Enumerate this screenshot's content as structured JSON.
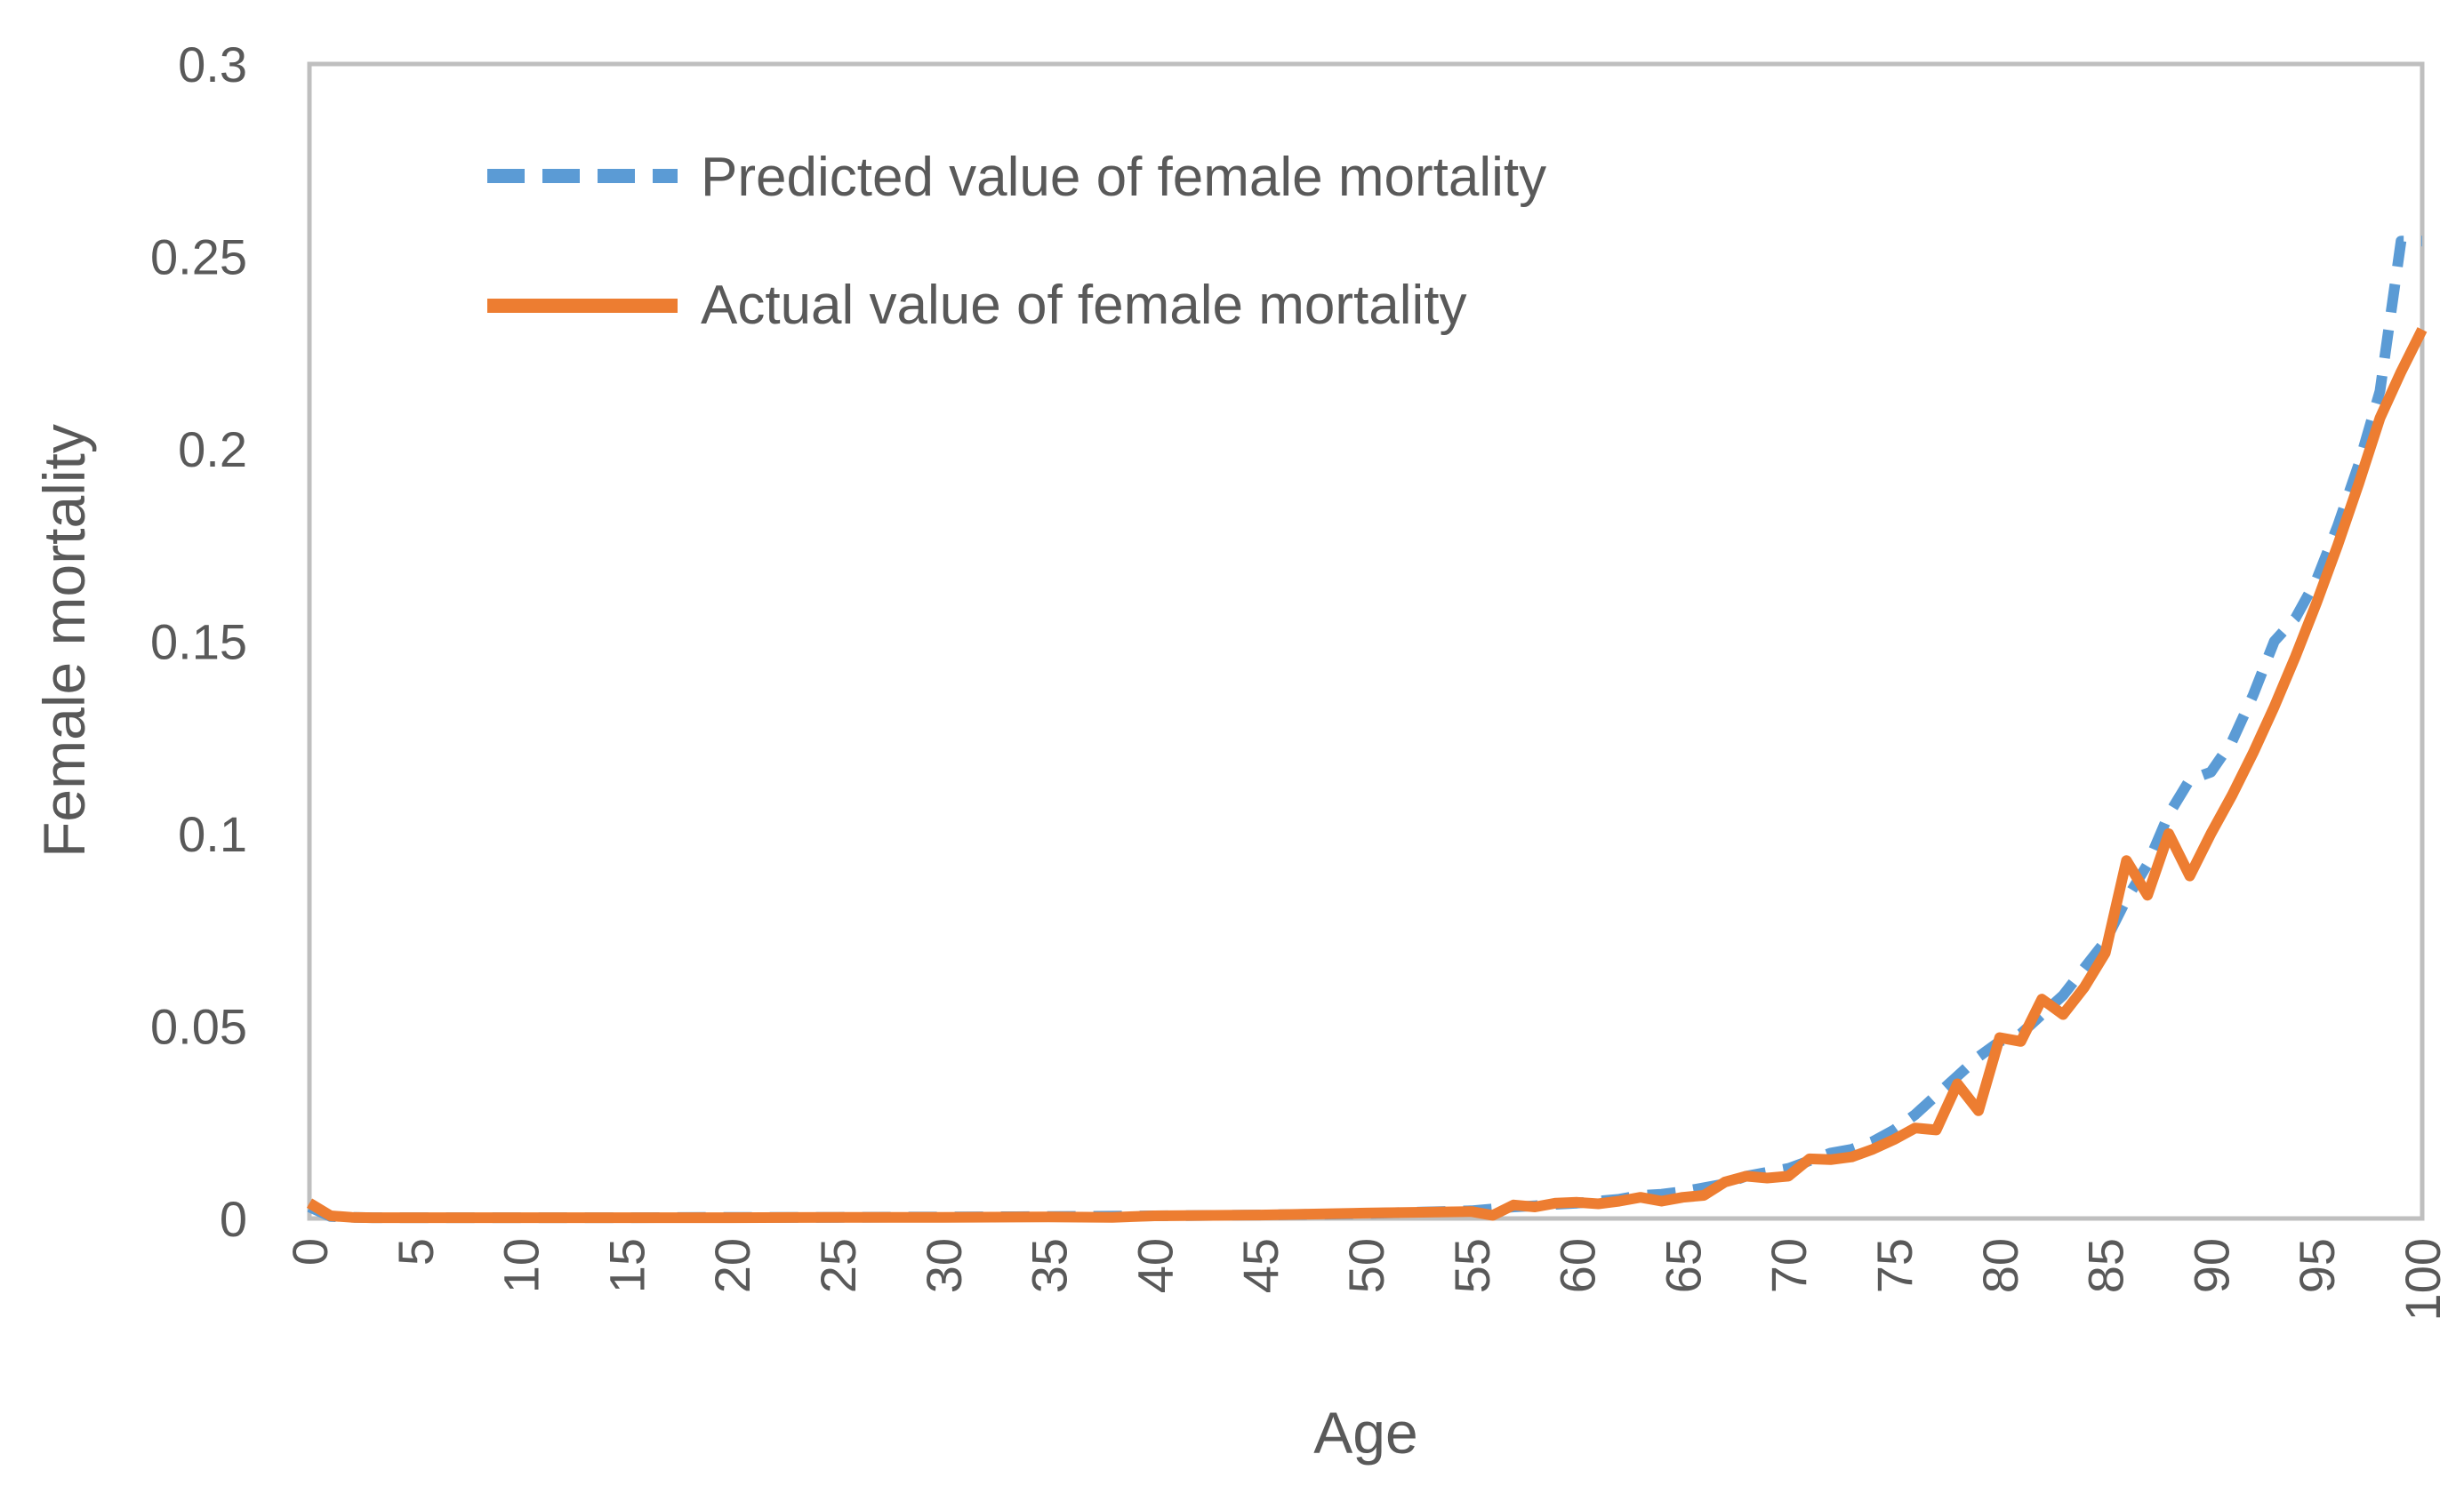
{
  "chart_data": {
    "type": "line",
    "title": "",
    "xlabel": "Age",
    "ylabel": "Female mortality",
    "xlim": [
      0,
      100
    ],
    "ylim": [
      0,
      0.3
    ],
    "x_ticks": [
      "0",
      "5",
      "10",
      "15",
      "20",
      "25",
      "30",
      "35",
      "40",
      "45",
      "50",
      "55",
      "60",
      "65",
      "70",
      "75",
      "80",
      "85",
      "90",
      "95",
      "100"
    ],
    "y_ticks": [
      "0",
      "0.05",
      "0.1",
      "0.15",
      "0.2",
      "0.25",
      "0.3"
    ],
    "legend_position": "top-left",
    "grid": false,
    "series": [
      {
        "name": "Predicted value of female mortality",
        "color": "#5B9BD5",
        "style": "dashed",
        "points": [
          [
            0,
            0.003
          ],
          [
            1,
            0.0005
          ],
          [
            2,
            0.0003
          ],
          [
            3,
            0.0002
          ],
          [
            4,
            0.0002
          ],
          [
            5,
            0.0002
          ],
          [
            10,
            0.0002
          ],
          [
            15,
            0.0002
          ],
          [
            20,
            0.0003
          ],
          [
            25,
            0.0003
          ],
          [
            30,
            0.0004
          ],
          [
            35,
            0.0005
          ],
          [
            40,
            0.0007
          ],
          [
            45,
            0.0009
          ],
          [
            50,
            0.0013
          ],
          [
            55,
            0.002
          ],
          [
            56,
            0.0025
          ],
          [
            57,
            0.003
          ],
          [
            58,
            0.0033
          ],
          [
            59,
            0.0037
          ],
          [
            60,
            0.004
          ],
          [
            61,
            0.0045
          ],
          [
            62,
            0.005
          ],
          [
            63,
            0.006
          ],
          [
            64,
            0.0063
          ],
          [
            65,
            0.007
          ],
          [
            66,
            0.008
          ],
          [
            67,
            0.009
          ],
          [
            68,
            0.011
          ],
          [
            69,
            0.012
          ],
          [
            70,
            0.013
          ],
          [
            71,
            0.015
          ],
          [
            72,
            0.017
          ],
          [
            73,
            0.018
          ],
          [
            74,
            0.02
          ],
          [
            75,
            0.023
          ],
          [
            76,
            0.027
          ],
          [
            77,
            0.032
          ],
          [
            78,
            0.037
          ],
          [
            79,
            0.042
          ],
          [
            80,
            0.046
          ],
          [
            81,
            0.048
          ],
          [
            82,
            0.053
          ],
          [
            83,
            0.058
          ],
          [
            84,
            0.065
          ],
          [
            85,
            0.072
          ],
          [
            86,
            0.083
          ],
          [
            87,
            0.092
          ],
          [
            88,
            0.105
          ],
          [
            89,
            0.114
          ],
          [
            90,
            0.116
          ],
          [
            91,
            0.124
          ],
          [
            92,
            0.136
          ],
          [
            93,
            0.15
          ],
          [
            94,
            0.156
          ],
          [
            95,
            0.166
          ],
          [
            96,
            0.18
          ],
          [
            97,
            0.196
          ],
          [
            98,
            0.215
          ],
          [
            99,
            0.254
          ],
          [
            100,
            0.254
          ]
        ]
      },
      {
        "name": "Actual value of female mortality",
        "color": "#ED7D31",
        "style": "solid",
        "points": [
          [
            0,
            0.004
          ],
          [
            1,
            0.0007
          ],
          [
            2,
            0.0003
          ],
          [
            3,
            0.0002
          ],
          [
            4,
            0.0002
          ],
          [
            5,
            0.0002
          ],
          [
            10,
            0.0002
          ],
          [
            15,
            0.0002
          ],
          [
            20,
            0.0002
          ],
          [
            25,
            0.0003
          ],
          [
            30,
            0.0003
          ],
          [
            35,
            0.0004
          ],
          [
            38,
            0.0003
          ],
          [
            40,
            0.0007
          ],
          [
            45,
            0.0009
          ],
          [
            50,
            0.0014
          ],
          [
            55,
            0.0018
          ],
          [
            56,
            0.0008
          ],
          [
            57,
            0.0035
          ],
          [
            58,
            0.003
          ],
          [
            59,
            0.004
          ],
          [
            60,
            0.0042
          ],
          [
            61,
            0.0038
          ],
          [
            62,
            0.0045
          ],
          [
            63,
            0.0055
          ],
          [
            64,
            0.0045
          ],
          [
            65,
            0.0055
          ],
          [
            66,
            0.006
          ],
          [
            67,
            0.0095
          ],
          [
            68,
            0.011
          ],
          [
            69,
            0.0105
          ],
          [
            70,
            0.011
          ],
          [
            71,
            0.0155
          ],
          [
            72,
            0.0153
          ],
          [
            73,
            0.016
          ],
          [
            74,
            0.018
          ],
          [
            75,
            0.0205
          ],
          [
            76,
            0.0235
          ],
          [
            77,
            0.023
          ],
          [
            78,
            0.035
          ],
          [
            79,
            0.028
          ],
          [
            80,
            0.047
          ],
          [
            81,
            0.046
          ],
          [
            82,
            0.057
          ],
          [
            83,
            0.053
          ],
          [
            84,
            0.06
          ],
          [
            85,
            0.069
          ],
          [
            86,
            0.093
          ],
          [
            87,
            0.084
          ],
          [
            88,
            0.1
          ],
          [
            89,
            0.089
          ],
          [
            90,
            0.1
          ],
          [
            91,
            0.11
          ],
          [
            92,
            0.121
          ],
          [
            93,
            0.133
          ],
          [
            94,
            0.146
          ],
          [
            95,
            0.16
          ],
          [
            96,
            0.175
          ],
          [
            97,
            0.191
          ],
          [
            98,
            0.208
          ],
          [
            99,
            0.22
          ],
          [
            100,
            0.231
          ]
        ]
      }
    ]
  }
}
